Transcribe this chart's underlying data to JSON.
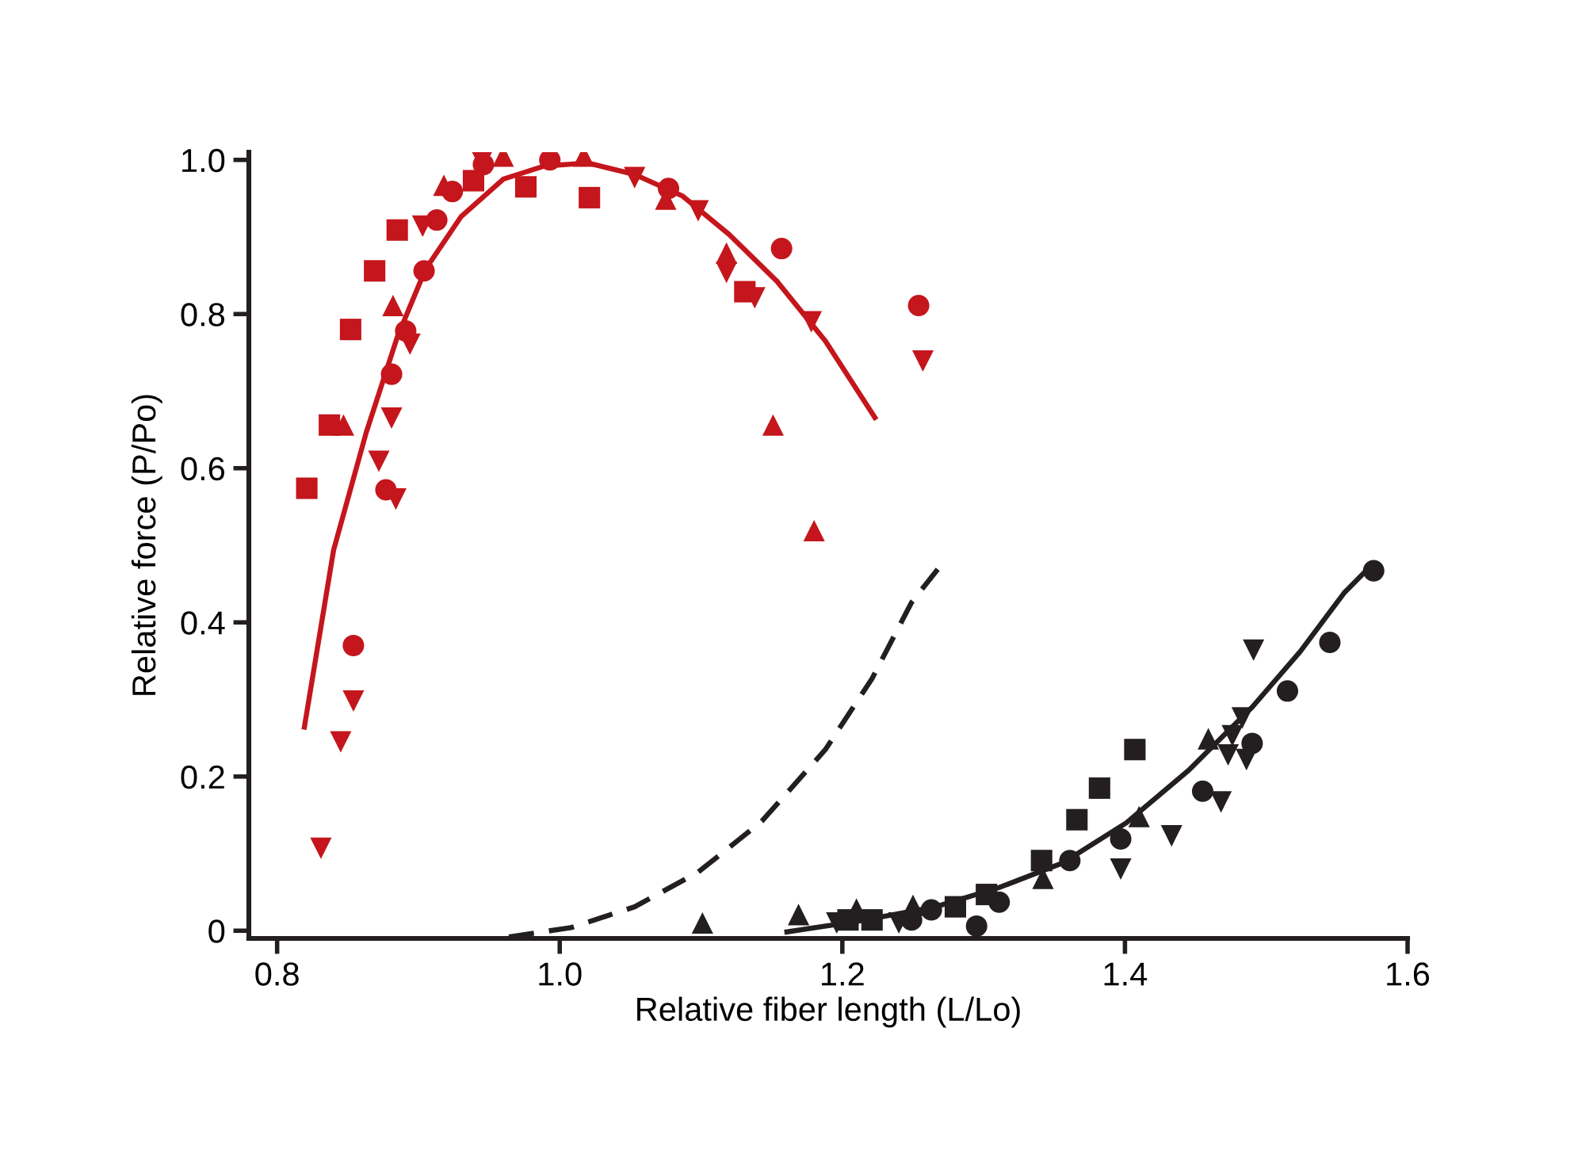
{
  "chart_data": {
    "type": "scatter",
    "xlabel": "Relative fiber length (L/Lo)",
    "ylabel": "Relative force (P/Po)",
    "xlim": [
      0.78,
      1.6
    ],
    "ylim": [
      -0.01,
      1.01
    ],
    "xticks": [
      0.8,
      {
        "value": 1.0,
        "label": "1.0"
      },
      1.2,
      1.4,
      1.6
    ],
    "yticks": [
      0,
      0.2,
      0.4,
      0.6,
      0.8,
      {
        "value": 1.0,
        "label": "1.0"
      }
    ],
    "grid": false,
    "legend": false,
    "series": [
      {
        "marker": "square",
        "color": "#c4161c",
        "x": [
          0.821,
          0.837,
          0.852,
          0.869,
          0.885,
          0.939,
          0.976,
          1.021,
          1.131
        ],
        "values": [
          0.574,
          0.656,
          0.78,
          0.856,
          0.909,
          0.973,
          0.965,
          0.951,
          0.829
        ]
      },
      {
        "marker": "circle",
        "color": "#c4161c",
        "x": [
          0.854,
          0.877,
          0.881,
          0.891,
          0.904,
          0.913,
          0.924,
          0.946,
          0.993,
          1.077,
          1.157,
          1.254
        ],
        "values": [
          0.37,
          0.572,
          0.722,
          0.778,
          0.856,
          0.922,
          0.959,
          0.994,
          1.0,
          0.963,
          0.885,
          0.811
        ]
      },
      {
        "marker": "triangle",
        "color": "#c4161c",
        "x": [
          0.847,
          0.882,
          0.918,
          0.96,
          1.017,
          1.075,
          1.118,
          1.151,
          1.18
        ],
        "values": [
          0.656,
          0.811,
          0.967,
          1.005,
          1.005,
          0.949,
          0.879,
          0.656,
          0.519
        ]
      },
      {
        "marker": "triangle_down",
        "color": "#c4161c",
        "x": [
          0.831,
          0.845,
          0.854,
          0.872,
          0.881,
          0.884,
          0.894,
          0.903,
          0.945,
          1.053,
          1.098,
          1.118,
          1.138,
          1.178,
          1.257
        ],
        "values": [
          0.107,
          0.245,
          0.298,
          0.609,
          0.665,
          0.56,
          0.761,
          0.914,
          0.998,
          0.977,
          0.934,
          0.854,
          0.821,
          0.79,
          0.739
        ]
      },
      {
        "type": "line",
        "line_style": "solid",
        "marker": "none",
        "color": "#c4161c",
        "x": [
          0.819,
          0.84,
          0.863,
          0.885,
          0.905,
          0.93,
          0.96,
          0.989,
          1.02,
          1.053,
          1.087,
          1.12,
          1.154,
          1.188,
          1.224
        ],
        "values": [
          0.261,
          0.494,
          0.646,
          0.77,
          0.858,
          0.926,
          0.975,
          0.992,
          0.996,
          0.981,
          0.953,
          0.903,
          0.842,
          0.765,
          0.663
        ]
      },
      {
        "type": "line",
        "line_style": "dashed",
        "marker": "none",
        "color": "#231f20",
        "x": [
          0.964,
          1.008,
          1.053,
          1.098,
          1.143,
          1.188,
          1.221,
          1.249,
          1.271
        ],
        "values": [
          -0.008,
          0.004,
          0.031,
          0.076,
          0.142,
          0.235,
          0.327,
          0.426,
          0.477
        ]
      },
      {
        "marker": "circle",
        "color": "#231f20",
        "x": [
          1.249,
          1.263,
          1.295,
          1.311,
          1.361,
          1.397,
          1.455,
          1.49,
          1.515,
          1.545,
          1.576
        ],
        "values": [
          0.014,
          0.027,
          0.006,
          0.037,
          0.091,
          0.119,
          0.181,
          0.243,
          0.311,
          0.374,
          0.467
        ]
      },
      {
        "marker": "square",
        "color": "#231f20",
        "x": [
          1.204,
          1.221,
          1.28,
          1.302,
          1.341,
          1.366,
          1.382,
          1.407
        ],
        "values": [
          0.014,
          0.014,
          0.031,
          0.047,
          0.091,
          0.144,
          0.185,
          0.235
        ]
      },
      {
        "marker": "triangle",
        "color": "#231f20",
        "x": [
          1.101,
          1.169,
          1.21,
          1.25,
          1.342,
          1.41,
          1.459
        ],
        "values": [
          0.01,
          0.021,
          0.028,
          0.033,
          0.068,
          0.148,
          0.249
        ]
      },
      {
        "marker": "triangle_down",
        "color": "#231f20",
        "x": [
          1.196,
          1.24,
          1.397,
          1.433,
          1.468,
          1.473,
          1.476,
          1.483,
          1.486,
          1.491
        ],
        "values": [
          0.01,
          0.01,
          0.08,
          0.123,
          0.167,
          0.228,
          0.253,
          0.276,
          0.222,
          0.364
        ]
      },
      {
        "type": "line",
        "line_style": "solid",
        "marker": "none",
        "color": "#231f20",
        "x": [
          1.159,
          1.21,
          1.266,
          1.311,
          1.356,
          1.401,
          1.445,
          1.49,
          1.524,
          1.555,
          1.575
        ],
        "values": [
          -0.002,
          0.012,
          0.031,
          0.056,
          0.088,
          0.14,
          0.208,
          0.29,
          0.362,
          0.438,
          0.475
        ]
      }
    ]
  }
}
